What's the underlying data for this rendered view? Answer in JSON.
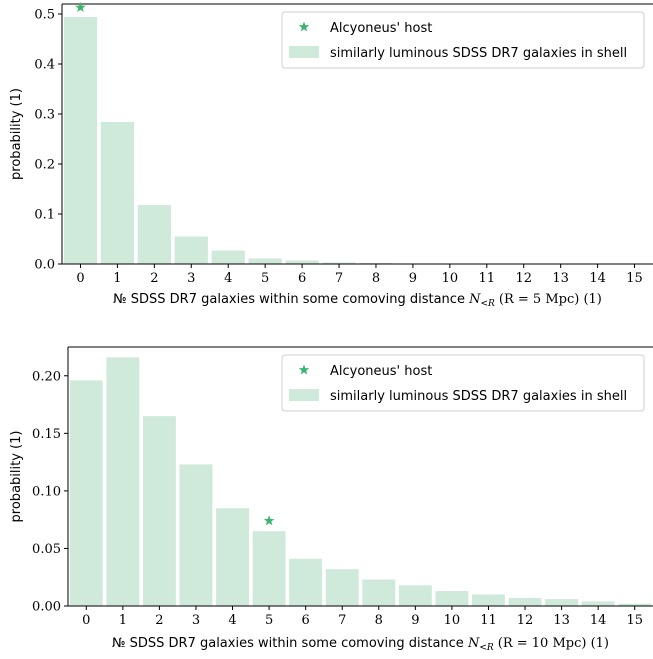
{
  "chart_data": [
    {
      "type": "bar",
      "xlabel": "№ SDSS DR7 galaxies within some comoving distance N<R (R = 5 Mpc) (1)",
      "ylabel": "probability (1)",
      "categories": [
        0,
        1,
        2,
        3,
        4,
        5,
        6,
        7,
        8,
        9,
        10,
        11,
        12,
        13,
        14,
        15
      ],
      "series": [
        {
          "name": "similarly luminous SDSS DR7 galaxies in shell",
          "values": [
            0.494,
            0.284,
            0.118,
            0.055,
            0.027,
            0.011,
            0.007,
            0.003,
            0.002,
            0.001,
            0.0005,
            0.0003,
            0.0002,
            0.0001,
            0.0001,
            0.0001
          ]
        }
      ],
      "markers": [
        {
          "name": "Alcyoneus' host",
          "x": 0,
          "y": 0.513
        }
      ],
      "ylim": [
        0,
        0.52
      ],
      "yticks": [
        0.0,
        0.1,
        0.2,
        0.3,
        0.4,
        0.5
      ],
      "ytick_labels": [
        "0.0",
        "0.1",
        "0.2",
        "0.3",
        "0.4",
        "0.5"
      ],
      "legend_position": "top-right",
      "grid": false
    },
    {
      "type": "bar",
      "xlabel": "№ SDSS DR7 galaxies within some comoving distance N<R (R = 10 Mpc) (1)",
      "ylabel": "probability (1)",
      "categories": [
        0,
        1,
        2,
        3,
        4,
        5,
        6,
        7,
        8,
        9,
        10,
        11,
        12,
        13,
        14,
        15
      ],
      "series": [
        {
          "name": "similarly luminous SDSS DR7 galaxies in shell",
          "values": [
            0.196,
            0.216,
            0.165,
            0.123,
            0.085,
            0.065,
            0.041,
            0.032,
            0.023,
            0.018,
            0.013,
            0.01,
            0.007,
            0.006,
            0.004,
            0.002
          ]
        }
      ],
      "markers": [
        {
          "name": "Alcyoneus' host",
          "x": 5,
          "y": 0.074
        }
      ],
      "ylim": [
        0,
        0.225
      ],
      "yticks": [
        0.0,
        0.05,
        0.1,
        0.15,
        0.2
      ],
      "ytick_labels": [
        "0.00",
        "0.05",
        "0.10",
        "0.15",
        "0.20"
      ],
      "legend_position": "top-right",
      "grid": false
    }
  ],
  "colors": {
    "bar": "#cfeadb",
    "marker": "#3cb371",
    "axis": "#000000"
  },
  "xlabel_parts": {
    "prefix": "№ SDSS DR7 galaxies within some comoving distance",
    "math_var": "N",
    "math_sub": "<R",
    "panels": [
      {
        "paren": "(R = 5 Mpc)",
        "unit": "(1)"
      },
      {
        "paren": "(R = 10 Mpc)",
        "unit": "(1)"
      }
    ]
  },
  "legend": {
    "marker_label": "Alcyoneus' host",
    "bar_label": "similarly luminous SDSS DR7 galaxies in shell"
  }
}
